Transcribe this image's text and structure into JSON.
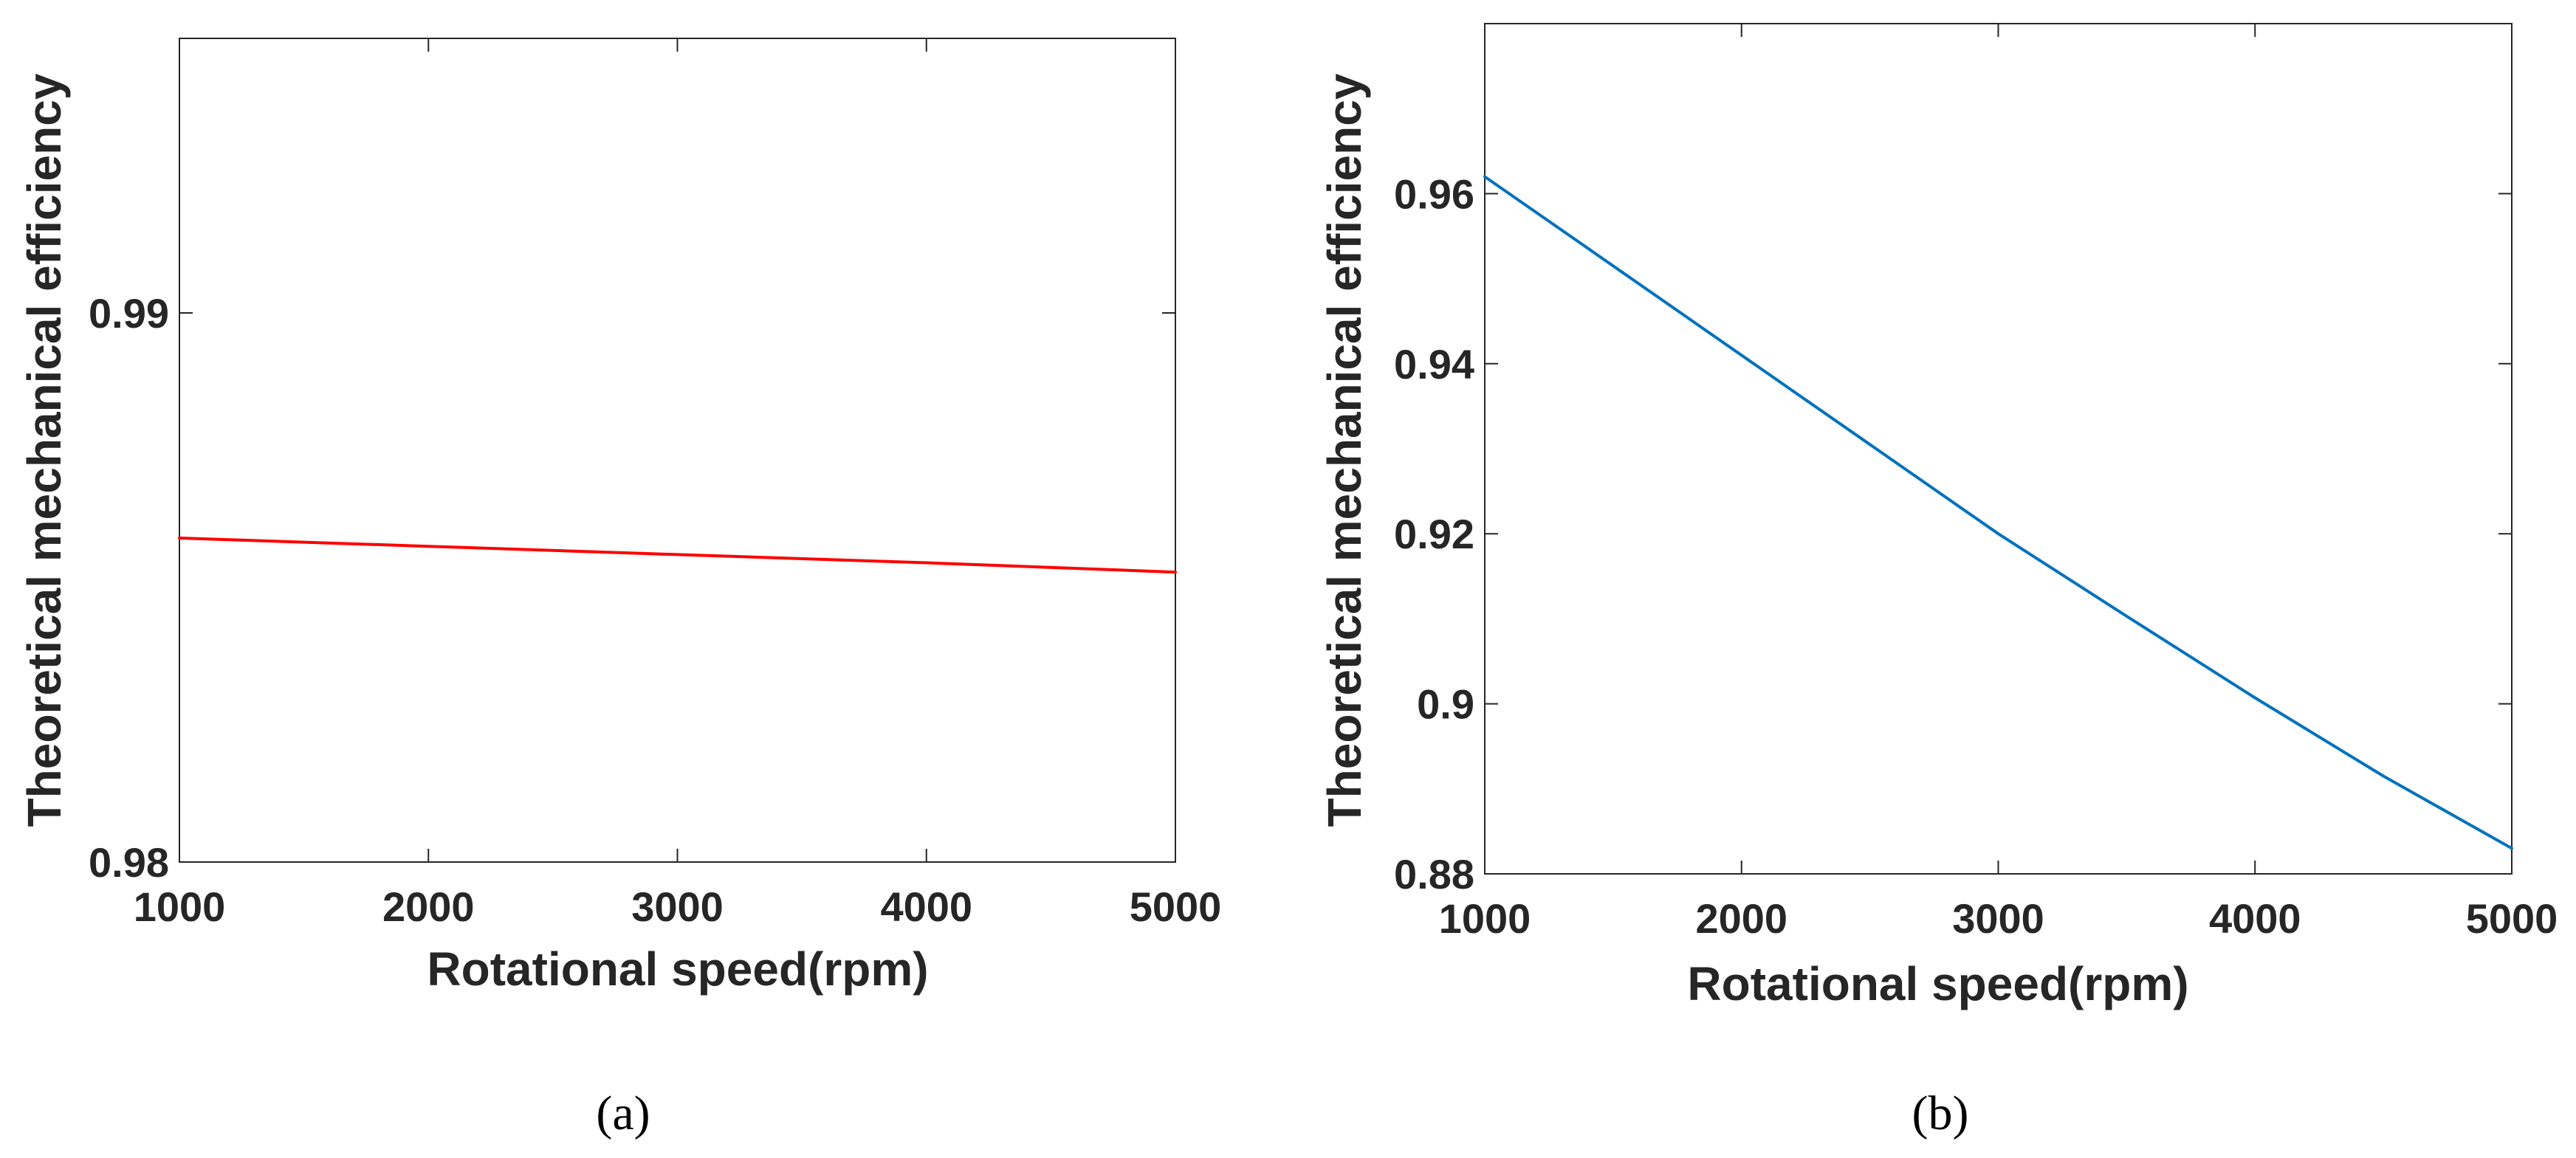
{
  "chart_data": [
    {
      "type": "line",
      "panel": "(a)",
      "xlabel": "Rotational speed(rpm)",
      "ylabel": "Theoretical mechanical efficiency",
      "xlim": [
        1000,
        5000
      ],
      "ylim": [
        0.98,
        0.995
      ],
      "xticks": [
        1000,
        2000,
        3000,
        4000,
        5000
      ],
      "xtick_labels": [
        "1000",
        "2000",
        "3000",
        "4000",
        "5000"
      ],
      "yticks": [
        0.98,
        0.99
      ],
      "ytick_labels": [
        "0.98",
        "0.99"
      ],
      "grid": false,
      "series": [
        {
          "name": "efficiency",
          "color": "#ff0000",
          "x": [
            1000,
            2000,
            3000,
            4000,
            5000
          ],
          "values": [
            0.9859,
            0.98575,
            0.9856,
            0.98545,
            0.98528
          ]
        }
      ]
    },
    {
      "type": "line",
      "panel": "(b)",
      "xlabel": "Rotational speed(rpm)",
      "ylabel": "Theoretical mechanical efficiency",
      "xlim": [
        1000,
        5000
      ],
      "ylim": [
        0.88,
        0.98
      ],
      "xticks": [
        1000,
        2000,
        3000,
        4000,
        5000
      ],
      "xtick_labels": [
        "1000",
        "2000",
        "3000",
        "4000",
        "5000"
      ],
      "yticks": [
        0.88,
        0.9,
        0.92,
        0.94,
        0.96
      ],
      "ytick_labels": [
        "0.88",
        "0.9",
        "0.92",
        "0.94",
        "0.96"
      ],
      "grid": false,
      "series": [
        {
          "name": "efficiency",
          "color": "#0072bd",
          "x": [
            1000,
            1500,
            2000,
            2500,
            3000,
            3500,
            4000,
            4500,
            5000
          ],
          "values": [
            0.962,
            0.9515,
            0.941,
            0.9305,
            0.92,
            0.9103,
            0.9007,
            0.8915,
            0.883
          ]
        }
      ]
    }
  ]
}
